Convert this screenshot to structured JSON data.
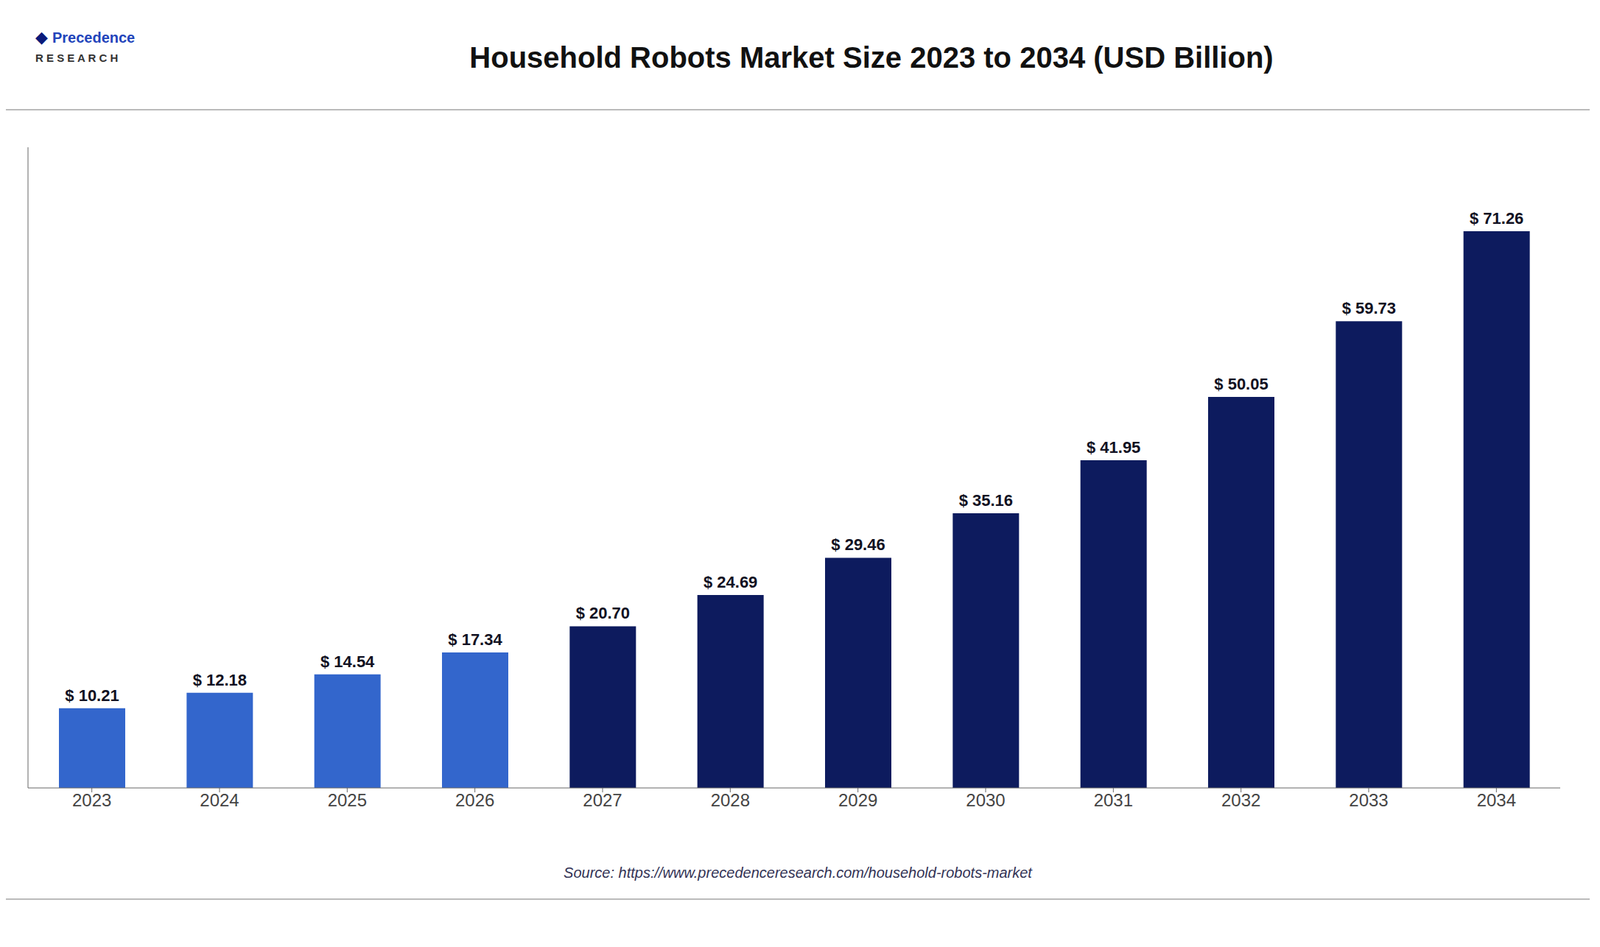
{
  "chart_data": {
    "type": "bar",
    "title": "Household Robots Market Size 2023 to 2034 (USD Billion)",
    "categories": [
      "2023",
      "2024",
      "2025",
      "2026",
      "2027",
      "2028",
      "2029",
      "2030",
      "2031",
      "2032",
      "2033",
      "2034"
    ],
    "values": [
      10.21,
      12.18,
      14.54,
      17.34,
      20.7,
      24.69,
      29.46,
      35.16,
      41.95,
      50.05,
      59.73,
      71.26
    ],
    "value_labels": [
      "$ 10.21",
      "$ 12.18",
      "$ 14.54",
      "$ 17.34",
      "$ 20.70",
      "$ 24.69",
      "$ 29.46",
      "$ 35.16",
      "$ 41.95",
      "$ 50.05",
      "$ 59.73",
      "$ 71.26"
    ],
    "data_labels": true,
    "colors": [
      "#3366CC",
      "#3366CC",
      "#3366CC",
      "#3366CC",
      "#0D1B5E",
      "#0D1B5E",
      "#0D1B5E",
      "#0D1B5E",
      "#0D1B5E",
      "#0D1B5E",
      "#0D1B5E",
      "#0D1B5E"
    ],
    "ylim": [
      0,
      82
    ],
    "grid": false,
    "tick_labels": "x",
    "annotations": [
      "◆",
      "Precedence",
      "R E S E A R C H",
      "Source: https://www.precedenceresearch.com/household-robots-market"
    ]
  }
}
